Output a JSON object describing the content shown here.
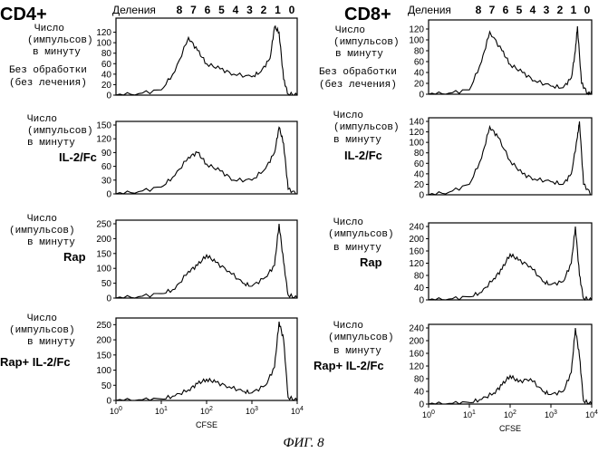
{
  "figure": {
    "caption": "ФИГ. 8",
    "columns": [
      {
        "title": "CD4+",
        "divisions_label": "Деления",
        "division_numbers": [
          "8",
          "7",
          "6",
          "5",
          "4",
          "3",
          "2",
          "1",
          "0"
        ]
      },
      {
        "title": "CD8+",
        "divisions_label": "Деления",
        "division_numbers": [
          "8",
          "7",
          "6",
          "5",
          "4",
          "3",
          "2",
          "1",
          "0"
        ]
      }
    ],
    "ylabel_lines": [
      "Число",
      "(импульсов)",
      "в минуту"
    ],
    "untreated_lines": [
      "Без обработки",
      "(без лечения)"
    ],
    "treatment_labels": [
      "",
      "IL-2/Fc",
      "Rap",
      "Rap+ IL-2/Fc"
    ]
  },
  "chart_data": [
    {
      "type": "line",
      "panel": "CD4+ Без обработки",
      "x": [
        "10^0",
        "10^0.5",
        "10^1",
        "10^1.3",
        "10^1.6",
        "10^1.8",
        "10^2",
        "10^2.3",
        "10^2.6",
        "10^3",
        "10^3.2",
        "10^3.4",
        "10^3.5",
        "10^3.6",
        "10^3.7",
        "10^3.8",
        "10^4"
      ],
      "values": [
        0,
        3,
        10,
        45,
        110,
        85,
        60,
        50,
        40,
        35,
        45,
        70,
        130,
        120,
        30,
        2,
        0
      ],
      "ylim": [
        0,
        140
      ],
      "yticks": [
        "0",
        "20",
        "40",
        "60",
        "80",
        "100",
        "120"
      ],
      "xlabel": "",
      "xlog": true
    },
    {
      "type": "line",
      "panel": "CD8+ Без обработки",
      "x": [
        "10^0",
        "10^0.5",
        "10^1",
        "10^1.3",
        "10^1.5",
        "10^1.8",
        "10^2",
        "10^2.3",
        "10^2.6",
        "10^3",
        "10^3.3",
        "10^3.5",
        "10^3.6",
        "10^3.65",
        "10^3.75",
        "10^3.9",
        "10^4"
      ],
      "values": [
        0,
        2,
        8,
        60,
        115,
        80,
        55,
        40,
        25,
        15,
        12,
        30,
        80,
        125,
        20,
        2,
        0
      ],
      "ylim": [
        0,
        130
      ],
      "yticks": [
        "0",
        "20",
        "40",
        "60",
        "80",
        "100",
        "120"
      ],
      "xlabel": "",
      "xlog": true
    },
    {
      "type": "line",
      "panel": "CD4+ IL-2/Fc",
      "x": [
        "10^0",
        "10^0.5",
        "10^1",
        "10^1.3",
        "10^1.6",
        "10^1.8",
        "10^2",
        "10^2.3",
        "10^2.6",
        "10^3",
        "10^3.3",
        "10^3.5",
        "10^3.6",
        "10^3.7",
        "10^3.8",
        "10^4"
      ],
      "values": [
        0,
        5,
        15,
        40,
        80,
        90,
        65,
        50,
        30,
        30,
        55,
        90,
        145,
        110,
        10,
        0
      ],
      "ylim": [
        0,
        150
      ],
      "yticks": [
        "0",
        "30",
        "60",
        "90",
        "120",
        "150"
      ],
      "xlabel": "",
      "xlog": true
    },
    {
      "type": "line",
      "panel": "CD8+ IL-2/Fc",
      "x": [
        "10^0",
        "10^0.5",
        "10^1",
        "10^1.3",
        "10^1.5",
        "10^1.7",
        "10^2",
        "10^2.3",
        "10^2.6",
        "10^3",
        "10^3.3",
        "10^3.5",
        "10^3.65",
        "10^3.7",
        "10^3.8",
        "10^4"
      ],
      "values": [
        0,
        5,
        20,
        70,
        130,
        110,
        65,
        40,
        30,
        25,
        20,
        40,
        110,
        140,
        20,
        0
      ],
      "ylim": [
        0,
        140
      ],
      "yticks": [
        "0",
        "20",
        "40",
        "60",
        "80",
        "100",
        "120",
        "140"
      ],
      "xlabel": "",
      "xlog": true
    },
    {
      "type": "line",
      "panel": "CD4+ Rap",
      "x": [
        "10^0",
        "10^0.5",
        "10^1",
        "10^1.3",
        "10^1.6",
        "10^1.8",
        "10^2",
        "10^2.2",
        "10^2.5",
        "10^2.8",
        "10^3",
        "10^3.3",
        "10^3.5",
        "10^3.6",
        "10^3.7",
        "10^3.8",
        "10^4"
      ],
      "values": [
        0,
        5,
        15,
        30,
        90,
        110,
        145,
        120,
        90,
        50,
        40,
        70,
        110,
        250,
        120,
        10,
        0
      ],
      "ylim": [
        0,
        250
      ],
      "yticks": [
        "0",
        "50",
        "100",
        "150",
        "200",
        "250"
      ],
      "xlabel": "",
      "xlog": true
    },
    {
      "type": "line",
      "panel": "CD8+ Rap",
      "x": [
        "10^0",
        "10^0.5",
        "10^1",
        "10^1.3",
        "10^1.6",
        "10^1.8",
        "10^2",
        "10^2.2",
        "10^2.5",
        "10^2.8",
        "10^3",
        "10^3.3",
        "10^3.5",
        "10^3.6",
        "10^3.7",
        "10^3.8",
        "10^4"
      ],
      "values": [
        0,
        3,
        10,
        25,
        70,
        100,
        150,
        130,
        110,
        60,
        50,
        60,
        120,
        240,
        80,
        5,
        0
      ],
      "ylim": [
        0,
        240
      ],
      "yticks": [
        "0",
        "40",
        "80",
        "120",
        "160",
        "200",
        "240"
      ],
      "xlabel": "",
      "xlog": true
    },
    {
      "type": "line",
      "panel": "CD4+ Rap+ IL-2/Fc",
      "x": [
        "10^0",
        "10^0.5",
        "10^1",
        "10^1.3",
        "10^1.6",
        "10^1.8",
        "10^2",
        "10^2.2",
        "10^2.5",
        "10^2.8",
        "10^3",
        "10^3.3",
        "10^3.5",
        "10^3.6",
        "10^3.7",
        "10^3.8",
        "10^4"
      ],
      "values": [
        0,
        2,
        5,
        15,
        35,
        55,
        70,
        60,
        45,
        30,
        25,
        50,
        110,
        260,
        200,
        10,
        0
      ],
      "ylim": [
        0,
        260
      ],
      "yticks": [
        "0",
        "50",
        "100",
        "150",
        "200",
        "250"
      ],
      "xlabel": "CFSE",
      "xlog": true,
      "xticks": [
        "10^0",
        "10^1",
        "10^2",
        "10^3",
        "10^4"
      ]
    },
    {
      "type": "line",
      "panel": "CD8+ Rap+ IL-2/Fc",
      "x": [
        "10^0",
        "10^0.5",
        "10^1",
        "10^1.3",
        "10^1.6",
        "10^1.8",
        "10^2",
        "10^2.2",
        "10^2.5",
        "10^2.8",
        "10^3",
        "10^3.3",
        "10^3.5",
        "10^3.6",
        "10^3.7",
        "10^3.8",
        "10^4"
      ],
      "values": [
        0,
        2,
        5,
        15,
        35,
        60,
        90,
        70,
        80,
        40,
        30,
        40,
        100,
        240,
        150,
        10,
        0
      ],
      "ylim": [
        0,
        240
      ],
      "yticks": [
        "0",
        "40",
        "80",
        "120",
        "160",
        "200",
        "240"
      ],
      "xlabel": "CFSE",
      "xlog": true,
      "xticks": [
        "10^0",
        "10^1",
        "10^2",
        "10^3",
        "10^4"
      ]
    }
  ]
}
